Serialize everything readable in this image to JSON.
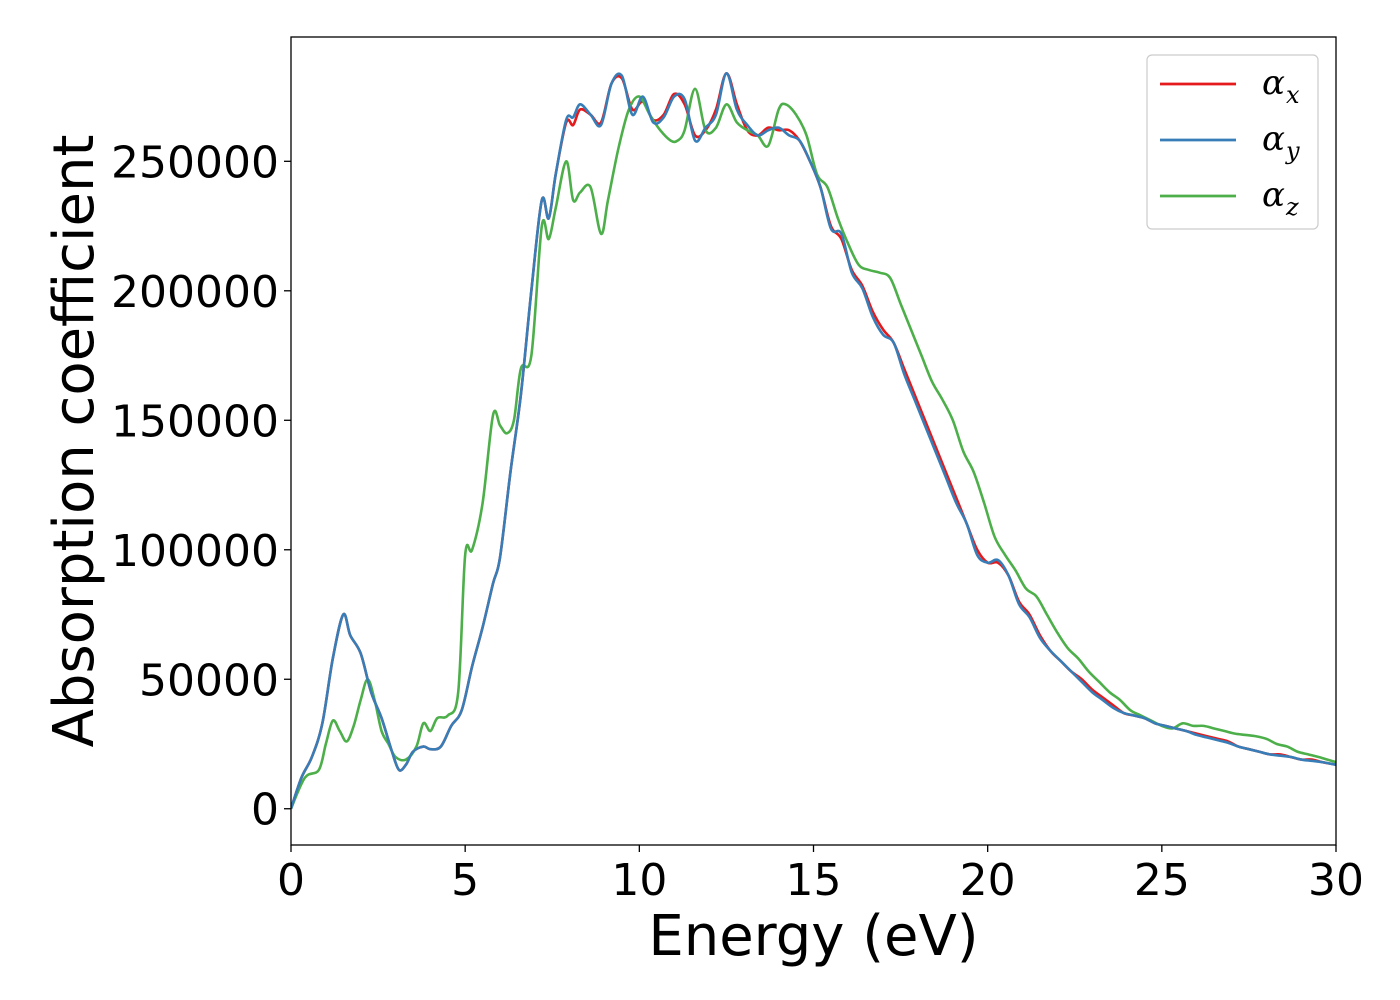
{
  "chart_data": {
    "type": "line",
    "title": "",
    "xlabel": "Energy (eV)",
    "ylabel": "Absorption coefficient",
    "xlim": [
      0,
      30
    ],
    "ylim": [
      -14000,
      298000
    ],
    "xticks": [
      0,
      5,
      10,
      15,
      20,
      25,
      30
    ],
    "xtick_labels": [
      "0",
      "5",
      "10",
      "15",
      "20",
      "25",
      "30"
    ],
    "yticks": [
      0,
      50000,
      100000,
      150000,
      200000,
      250000
    ],
    "ytick_labels": [
      "0",
      "50000",
      "100000",
      "150000",
      "200000",
      "250000"
    ],
    "grid": false,
    "legend_position": "top-right",
    "series": [
      {
        "name": "α",
        "subscript": "x",
        "color": "#e41a1c",
        "x": [
          0,
          0.3,
          0.6,
          0.9,
          1.2,
          1.5,
          1.7,
          2.0,
          2.3,
          2.6,
          2.9,
          3.1,
          3.3,
          3.5,
          3.8,
          4.0,
          4.3,
          4.6,
          4.9,
          5.2,
          5.5,
          5.8,
          6.0,
          6.3,
          6.6,
          6.9,
          7.2,
          7.4,
          7.6,
          7.9,
          8.1,
          8.3,
          8.6,
          8.9,
          9.2,
          9.5,
          9.8,
          10.1,
          10.4,
          10.7,
          11.0,
          11.3,
          11.6,
          11.9,
          12.2,
          12.5,
          12.8,
          13.1,
          13.4,
          13.7,
          14.0,
          14.3,
          14.6,
          14.9,
          15.2,
          15.5,
          15.8,
          16.1,
          16.4,
          16.7,
          17.0,
          17.3,
          17.6,
          17.9,
          18.2,
          18.5,
          18.8,
          19.1,
          19.4,
          19.7,
          20.0,
          20.3,
          20.6,
          20.9,
          21.2,
          21.5,
          21.8,
          22.1,
          22.4,
          22.7,
          23.0,
          23.3,
          23.6,
          23.9,
          24.2,
          24.5,
          24.8,
          25.1,
          25.4,
          25.7,
          26.0,
          26.3,
          26.6,
          26.9,
          27.2,
          27.5,
          27.8,
          28.1,
          28.4,
          28.7,
          29.0,
          29.3,
          29.6,
          30.0
        ],
        "y": [
          0,
          12000,
          20000,
          33000,
          58000,
          75000,
          67000,
          60000,
          45000,
          35000,
          22000,
          15000,
          17000,
          22000,
          24000,
          23000,
          24000,
          32000,
          38000,
          55000,
          70000,
          87000,
          97000,
          130000,
          160000,
          200000,
          235000,
          228000,
          245000,
          265000,
          264000,
          270000,
          268000,
          265000,
          280000,
          282000,
          270000,
          273000,
          266000,
          268000,
          276000,
          272000,
          260000,
          262000,
          270000,
          284000,
          272000,
          262000,
          260000,
          263000,
          262000,
          262000,
          258000,
          250000,
          240000,
          225000,
          220000,
          208000,
          202000,
          192000,
          185000,
          180000,
          170000,
          160000,
          150000,
          140000,
          130000,
          120000,
          110000,
          100000,
          95000,
          95000,
          90000,
          80000,
          75000,
          67000,
          61000,
          57000,
          53000,
          50000,
          46000,
          43000,
          40000,
          37000,
          36000,
          35000,
          33000,
          32000,
          31000,
          30000,
          29000,
          28000,
          27000,
          26000,
          24000,
          23000,
          22000,
          21000,
          21000,
          20000,
          19000,
          19000,
          18000,
          17000
        ]
      },
      {
        "name": "α",
        "subscript": "y",
        "color": "#377eb8",
        "x": [
          0,
          0.3,
          0.6,
          0.9,
          1.2,
          1.5,
          1.7,
          2.0,
          2.3,
          2.6,
          2.9,
          3.1,
          3.3,
          3.5,
          3.8,
          4.0,
          4.3,
          4.6,
          4.9,
          5.2,
          5.5,
          5.8,
          6.0,
          6.3,
          6.6,
          6.9,
          7.2,
          7.4,
          7.6,
          7.9,
          8.1,
          8.3,
          8.6,
          8.9,
          9.2,
          9.5,
          9.8,
          10.1,
          10.4,
          10.7,
          11.0,
          11.3,
          11.6,
          11.9,
          12.2,
          12.5,
          12.8,
          13.1,
          13.4,
          13.7,
          14.0,
          14.3,
          14.6,
          14.9,
          15.2,
          15.5,
          15.8,
          16.1,
          16.4,
          16.7,
          17.0,
          17.3,
          17.6,
          17.9,
          18.2,
          18.5,
          18.8,
          19.1,
          19.4,
          19.7,
          20.0,
          20.3,
          20.6,
          20.9,
          21.2,
          21.5,
          21.8,
          22.1,
          22.4,
          22.7,
          23.0,
          23.3,
          23.6,
          23.9,
          24.2,
          24.5,
          24.8,
          25.1,
          25.4,
          25.7,
          26.0,
          26.3,
          26.6,
          26.9,
          27.2,
          27.5,
          27.8,
          28.1,
          28.4,
          28.7,
          29.0,
          29.3,
          29.6,
          30.0
        ],
        "y": [
          0,
          12000,
          20000,
          33000,
          58000,
          75000,
          67000,
          60000,
          45000,
          35000,
          22000,
          15000,
          17000,
          22000,
          24000,
          23000,
          24000,
          32000,
          38000,
          55000,
          70000,
          87000,
          97000,
          130000,
          160000,
          200000,
          235000,
          228000,
          245000,
          266000,
          267000,
          272000,
          268000,
          264000,
          280000,
          283000,
          268000,
          275000,
          265000,
          267000,
          275000,
          274000,
          258000,
          263000,
          268000,
          284000,
          270000,
          264000,
          260000,
          262000,
          263000,
          260000,
          258000,
          250000,
          240000,
          224000,
          222000,
          207000,
          201000,
          190000,
          183000,
          180000,
          168000,
          158000,
          148000,
          138000,
          128000,
          118000,
          110000,
          98000,
          95000,
          96000,
          90000,
          79000,
          74000,
          66000,
          61000,
          57000,
          53000,
          49000,
          45000,
          42000,
          39000,
          37000,
          36000,
          35000,
          33000,
          32000,
          31000,
          30000,
          28500,
          27500,
          26500,
          25500,
          24000,
          23000,
          22000,
          21000,
          20500,
          20000,
          19000,
          18500,
          18000,
          17000
        ]
      },
      {
        "name": "α",
        "subscript": "z",
        "color": "#4daf4a",
        "x": [
          0,
          0.4,
          0.8,
          1.0,
          1.2,
          1.4,
          1.6,
          1.8,
          2.0,
          2.2,
          2.4,
          2.6,
          2.8,
          3.0,
          3.3,
          3.6,
          3.8,
          4.0,
          4.2,
          4.5,
          4.8,
          5.0,
          5.2,
          5.5,
          5.8,
          6.0,
          6.2,
          6.4,
          6.6,
          6.9,
          7.2,
          7.4,
          7.6,
          7.9,
          8.1,
          8.3,
          8.6,
          8.9,
          9.1,
          9.4,
          9.7,
          10.0,
          10.3,
          10.6,
          10.9,
          11.1,
          11.3,
          11.6,
          11.9,
          12.2,
          12.5,
          12.8,
          13.1,
          13.4,
          13.7,
          14.0,
          14.2,
          14.5,
          14.8,
          15.1,
          15.4,
          15.7,
          16.0,
          16.3,
          16.6,
          16.9,
          17.2,
          17.5,
          17.8,
          18.1,
          18.4,
          18.7,
          19.0,
          19.3,
          19.6,
          19.9,
          20.2,
          20.5,
          20.8,
          21.1,
          21.4,
          21.7,
          22.0,
          22.3,
          22.6,
          22.9,
          23.2,
          23.5,
          23.8,
          24.1,
          24.4,
          24.7,
          25.0,
          25.3,
          25.6,
          25.9,
          26.2,
          26.5,
          26.8,
          27.1,
          27.4,
          27.7,
          28.0,
          28.3,
          28.6,
          28.9,
          29.2,
          29.5,
          30.0
        ],
        "y": [
          0,
          12000,
          15000,
          25000,
          34000,
          30000,
          26000,
          32000,
          42000,
          50000,
          42000,
          30000,
          25000,
          20000,
          19000,
          24000,
          33000,
          30000,
          35000,
          36000,
          45000,
          98000,
          100000,
          118000,
          152000,
          148000,
          145000,
          150000,
          170000,
          175000,
          225000,
          220000,
          232000,
          250000,
          235000,
          238000,
          240000,
          222000,
          235000,
          255000,
          270000,
          275000,
          268000,
          262000,
          258000,
          258000,
          262000,
          278000,
          262000,
          263000,
          272000,
          265000,
          262000,
          260000,
          256000,
          270000,
          272000,
          268000,
          260000,
          245000,
          240000,
          228000,
          218000,
          210000,
          208000,
          207000,
          205000,
          195000,
          185000,
          175000,
          165000,
          158000,
          150000,
          138000,
          130000,
          118000,
          105000,
          98000,
          92000,
          85000,
          82000,
          75000,
          68000,
          62000,
          58000,
          53000,
          49000,
          45000,
          42000,
          38000,
          36000,
          34000,
          32000,
          31000,
          33000,
          32000,
          32000,
          31000,
          30000,
          29000,
          28500,
          28000,
          27000,
          25000,
          24000,
          22000,
          21000,
          20000,
          18000
        ]
      }
    ]
  }
}
